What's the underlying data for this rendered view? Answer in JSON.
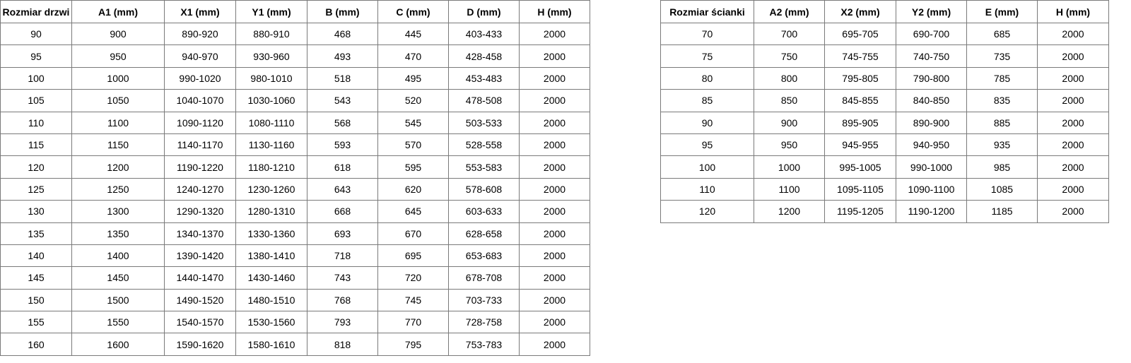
{
  "door_table": {
    "headers": [
      "Rozmiar drzwi",
      "A1 (mm)",
      "X1 (mm)",
      "Y1 (mm)",
      "B (mm)",
      "C (mm)",
      "D (mm)",
      "H (mm)"
    ],
    "rows": [
      [
        "90",
        "900",
        "890-920",
        "880-910",
        "468",
        "445",
        "403-433",
        "2000"
      ],
      [
        "95",
        "950",
        "940-970",
        "930-960",
        "493",
        "470",
        "428-458",
        "2000"
      ],
      [
        "100",
        "1000",
        "990-1020",
        "980-1010",
        "518",
        "495",
        "453-483",
        "2000"
      ],
      [
        "105",
        "1050",
        "1040-1070",
        "1030-1060",
        "543",
        "520",
        "478-508",
        "2000"
      ],
      [
        "110",
        "1100",
        "1090-1120",
        "1080-1110",
        "568",
        "545",
        "503-533",
        "2000"
      ],
      [
        "115",
        "1150",
        "1140-1170",
        "1130-1160",
        "593",
        "570",
        "528-558",
        "2000"
      ],
      [
        "120",
        "1200",
        "1190-1220",
        "1180-1210",
        "618",
        "595",
        "553-583",
        "2000"
      ],
      [
        "125",
        "1250",
        "1240-1270",
        "1230-1260",
        "643",
        "620",
        "578-608",
        "2000"
      ],
      [
        "130",
        "1300",
        "1290-1320",
        "1280-1310",
        "668",
        "645",
        "603-633",
        "2000"
      ],
      [
        "135",
        "1350",
        "1340-1370",
        "1330-1360",
        "693",
        "670",
        "628-658",
        "2000"
      ],
      [
        "140",
        "1400",
        "1390-1420",
        "1380-1410",
        "718",
        "695",
        "653-683",
        "2000"
      ],
      [
        "145",
        "1450",
        "1440-1470",
        "1430-1460",
        "743",
        "720",
        "678-708",
        "2000"
      ],
      [
        "150",
        "1500",
        "1490-1520",
        "1480-1510",
        "768",
        "745",
        "703-733",
        "2000"
      ],
      [
        "155",
        "1550",
        "1540-1570",
        "1530-1560",
        "793",
        "770",
        "728-758",
        "2000"
      ],
      [
        "160",
        "1600",
        "1590-1620",
        "1580-1610",
        "818",
        "795",
        "753-783",
        "2000"
      ]
    ]
  },
  "wall_table": {
    "headers": [
      "Rozmiar ścianki",
      "A2 (mm)",
      "X2 (mm)",
      "Y2 (mm)",
      "E (mm)",
      "H (mm)"
    ],
    "rows": [
      [
        "70",
        "700",
        "695-705",
        "690-700",
        "685",
        "2000"
      ],
      [
        "75",
        "750",
        "745-755",
        "740-750",
        "735",
        "2000"
      ],
      [
        "80",
        "800",
        "795-805",
        "790-800",
        "785",
        "2000"
      ],
      [
        "85",
        "850",
        "845-855",
        "840-850",
        "835",
        "2000"
      ],
      [
        "90",
        "900",
        "895-905",
        "890-900",
        "885",
        "2000"
      ],
      [
        "95",
        "950",
        "945-955",
        "940-950",
        "935",
        "2000"
      ],
      [
        "100",
        "1000",
        "995-1005",
        "990-1000",
        "985",
        "2000"
      ],
      [
        "110",
        "1100",
        "1095-1105",
        "1090-1100",
        "1085",
        "2000"
      ],
      [
        "120",
        "1200",
        "1195-1205",
        "1190-1200",
        "1185",
        "2000"
      ]
    ]
  }
}
